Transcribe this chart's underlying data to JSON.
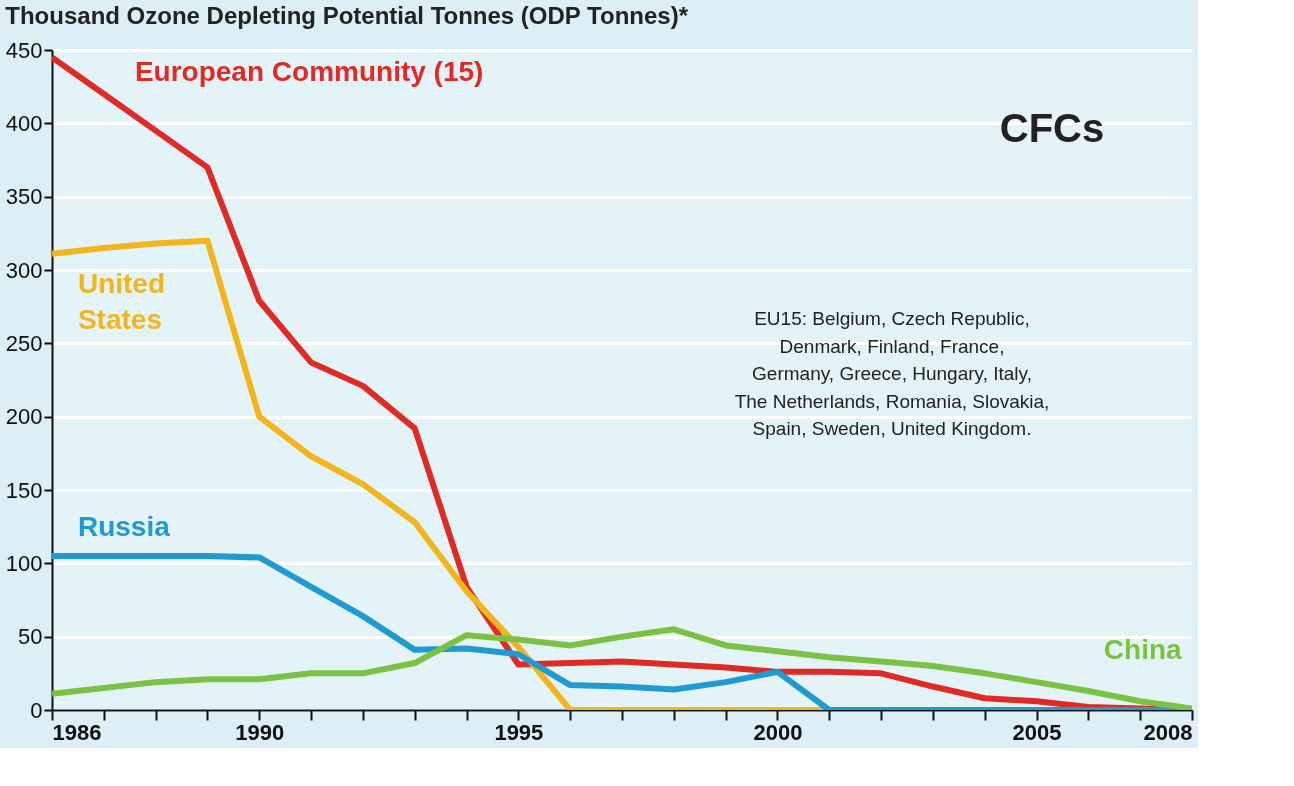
{
  "chart_data": {
    "type": "line",
    "title": "Thousand Ozone Depleting Potential Tonnes (ODP Tonnes)*",
    "x": [
      1986,
      1987,
      1988,
      1989,
      1990,
      1991,
      1992,
      1993,
      1994,
      1995,
      1996,
      1997,
      1998,
      1999,
      2000,
      2001,
      2002,
      2003,
      2004,
      2005,
      2006,
      2007,
      2008
    ],
    "series": [
      {
        "name": "European Community (15)",
        "color": "#e02a26",
        "values": [
          445,
          420,
          395,
          370,
          279,
          237,
          221,
          192,
          84,
          31,
          32,
          33,
          31,
          29,
          26,
          26,
          25,
          16,
          8,
          6,
          2,
          1,
          0
        ]
      },
      {
        "name": "United States",
        "color": "#f2b51c",
        "values": [
          311,
          315,
          318,
          320,
          200,
          173,
          154,
          128,
          81,
          43,
          0,
          0,
          0,
          0,
          0,
          0,
          0,
          null,
          null,
          null,
          null,
          null,
          null
        ]
      },
      {
        "name": "Russia",
        "color": "#1f9bd1",
        "values": [
          105,
          105,
          105,
          105,
          104,
          84,
          64,
          41,
          42,
          38,
          17,
          16,
          14,
          19,
          26,
          0,
          0,
          0,
          0,
          0,
          0,
          0,
          0
        ]
      },
      {
        "name": "China",
        "color": "#7cc242",
        "values": [
          11,
          15,
          19,
          21,
          21,
          25,
          25,
          32,
          51,
          48,
          44,
          50,
          55,
          44,
          40,
          36,
          33,
          30,
          25,
          19,
          13,
          6,
          1
        ]
      }
    ],
    "xlim": [
      1986,
      2008
    ],
    "xticks": [
      1986,
      {
        "value": 1987,
        "label": null
      },
      {
        "value": 1988,
        "label": null
      },
      {
        "value": 1989,
        "label": null
      },
      1990,
      {
        "value": 1991,
        "label": null
      },
      {
        "value": 1992,
        "label": null
      },
      {
        "value": 1993,
        "label": null
      },
      {
        "value": 1994,
        "label": null
      },
      1995,
      {
        "value": 1996,
        "label": null
      },
      {
        "value": 1997,
        "label": null
      },
      {
        "value": 1998,
        "label": null
      },
      {
        "value": 1999,
        "label": null
      },
      2000,
      {
        "value": 2001,
        "label": null
      },
      {
        "value": 2002,
        "label": null
      },
      {
        "value": 2003,
        "label": null
      },
      {
        "value": 2004,
        "label": null
      },
      2005,
      {
        "value": 2006,
        "label": null
      },
      {
        "value": 2007,
        "label": null
      },
      2008
    ],
    "ylim": [
      0,
      450
    ],
    "yticks": [
      0,
      50,
      100,
      150,
      200,
      250,
      300,
      350,
      400,
      450
    ],
    "grid": "y",
    "legend": false,
    "marker": "none",
    "line_style": "solid",
    "annotations": [
      "CFCs",
      "EU15: Belgium, Czech Republic,\nDenmark, Finland, France,\nGermany, Greece, Hungary, Italy,\nThe Netherlands, Romania, Slovakia,\nSpain, Sweden, United Kingdom."
    ]
  }
}
